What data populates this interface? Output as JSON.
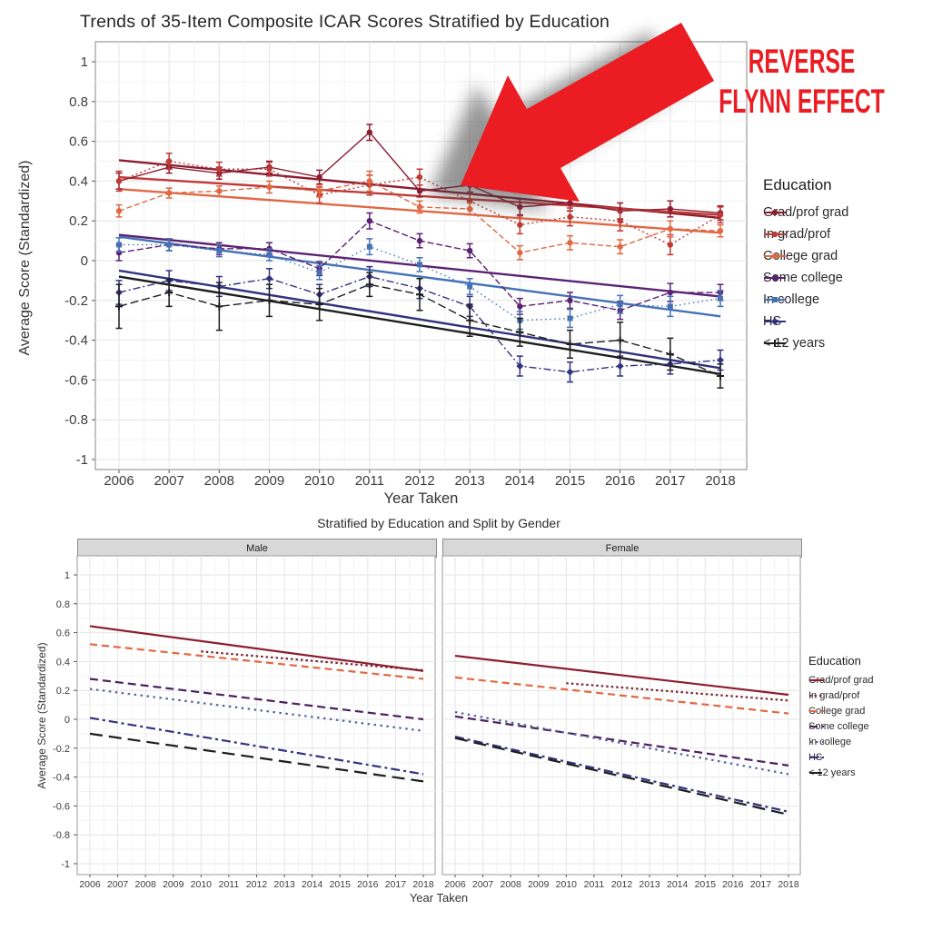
{
  "annotation": {
    "line1": "REVERSE",
    "line2": "FLYNN EFFECT",
    "color": "#EB1C22"
  },
  "chart_data": [
    {
      "type": "line",
      "title": "Trends of 35-Item Composite ICAR Scores Stratified by Education",
      "xlabel": "Year Taken",
      "ylabel": "Average Score (Standardized)",
      "legend_title": "Education",
      "legend_position": "right",
      "grid": true,
      "ylim": [
        -1,
        1
      ],
      "yticks": [
        "1",
        "0.8",
        "0.6",
        "0.4",
        "0.2",
        "0",
        "-0.2",
        "-0.4",
        "-0.6",
        "-0.8",
        "-1"
      ],
      "x": [
        2006,
        2007,
        2008,
        2009,
        2010,
        2011,
        2012,
        2013,
        2014,
        2015,
        2016,
        2017,
        2018
      ],
      "series": [
        {
          "name": "Grad/prof grad",
          "color": "#8C1D31",
          "marker": "circle",
          "dash": "",
          "values": [
            0.4,
            0.47,
            0.44,
            0.47,
            0.42,
            0.645,
            0.35,
            0.38,
            0.27,
            0.29,
            0.25,
            0.26,
            0.24
          ],
          "errors": [
            0.04,
            0.03,
            0.03,
            0.03,
            0.035,
            0.04,
            0.03,
            0.035,
            0.04,
            0.04,
            0.04,
            0.04,
            0.035
          ],
          "trend": [
            0.505,
            0.215
          ]
        },
        {
          "name": "In grad/prof",
          "color": "#BE3A36",
          "marker": "circle",
          "dash": "2,3",
          "values": [
            0.4,
            0.5,
            0.46,
            0.46,
            0.33,
            0.38,
            0.42,
            0.3,
            0.18,
            0.22,
            0.2,
            0.08,
            0.23
          ],
          "errors": [
            0.05,
            0.04,
            0.035,
            0.035,
            0.04,
            0.05,
            0.04,
            0.04,
            0.045,
            0.045,
            0.05,
            0.05,
            0.04
          ],
          "trend": [
            0.42,
            0.23
          ]
        },
        {
          "name": "College grad",
          "color": "#E06843",
          "marker": "circle",
          "dash": "6,3",
          "values": [
            0.25,
            0.34,
            0.35,
            0.37,
            0.35,
            0.4,
            0.27,
            0.26,
            0.04,
            0.09,
            0.07,
            0.16,
            0.15
          ],
          "errors": [
            0.03,
            0.025,
            0.025,
            0.03,
            0.03,
            0.05,
            0.03,
            0.03,
            0.035,
            0.035,
            0.035,
            0.04,
            0.03
          ],
          "trend": [
            0.36,
            0.14
          ]
        },
        {
          "name": "Some college",
          "color": "#5B2273",
          "marker": "circle",
          "dash": "7,3",
          "values": [
            0.04,
            0.08,
            0.06,
            0.06,
            -0.04,
            0.2,
            0.1,
            0.05,
            -0.23,
            -0.2,
            -0.25,
            -0.16,
            -0.16
          ],
          "errors": [
            0.04,
            0.03,
            0.03,
            0.03,
            0.035,
            0.04,
            0.035,
            0.035,
            0.04,
            0.04,
            0.045,
            0.045,
            0.04
          ],
          "trend": [
            0.13,
            -0.18
          ]
        },
        {
          "name": "In college",
          "color": "#4472B5",
          "marker": "square",
          "dash": "1.5,3.5",
          "values": [
            0.08,
            0.08,
            0.05,
            0.03,
            -0.06,
            0.07,
            -0.02,
            -0.13,
            -0.3,
            -0.29,
            -0.22,
            -0.23,
            -0.19
          ],
          "errors": [
            0.035,
            0.03,
            0.03,
            0.03,
            0.035,
            0.04,
            0.035,
            0.04,
            0.045,
            0.045,
            0.045,
            0.05,
            0.04
          ],
          "trend": [
            0.12,
            -0.28
          ]
        },
        {
          "name": "HS",
          "color": "#33327F",
          "marker": "diamond",
          "dash": "8,3,2,3",
          "values": [
            -0.16,
            -0.1,
            -0.13,
            -0.09,
            -0.17,
            -0.08,
            -0.14,
            -0.23,
            -0.53,
            -0.56,
            -0.53,
            -0.52,
            -0.5
          ],
          "errors": [
            0.06,
            0.05,
            0.05,
            0.05,
            0.05,
            0.05,
            0.05,
            0.05,
            0.05,
            0.05,
            0.05,
            0.05,
            0.05
          ],
          "trend": [
            -0.05,
            -0.54
          ]
        },
        {
          "name": "< 12 years",
          "color": "#1D1D1D",
          "marker": "plus",
          "dash": "9,4",
          "values": [
            -0.23,
            -0.16,
            -0.23,
            -0.2,
            -0.22,
            -0.12,
            -0.17,
            -0.3,
            -0.36,
            -0.42,
            -0.4,
            -0.47,
            -0.58
          ],
          "errors": [
            0.11,
            0.07,
            0.12,
            0.08,
            0.08,
            0.06,
            0.08,
            0.08,
            0.07,
            0.07,
            0.09,
            0.08,
            0.06
          ],
          "trend": [
            -0.08,
            -0.57
          ]
        }
      ]
    },
    {
      "type": "line",
      "title": "Stratified by Education and Split by Gender",
      "xlabel": "Year Taken",
      "ylabel": "Average Score (Standardized)",
      "legend_title": "Education",
      "facets": [
        "Male",
        "Female"
      ],
      "grid": true,
      "ylim": [
        -1,
        1
      ],
      "yticks": [
        "1",
        "0.8",
        "0.6",
        "0.4",
        "0.2",
        "0",
        "-0.2",
        "-0.4",
        "-0.6",
        "-0.8",
        "-1"
      ],
      "x_range": [
        2006,
        2018
      ],
      "xticks": [
        2006,
        2007,
        2008,
        2009,
        2010,
        2011,
        2012,
        2013,
        2014,
        2015,
        2016,
        2017,
        2018
      ],
      "series": [
        {
          "name": "Grad/prof grad",
          "color": "#8C1D31",
          "dash": "",
          "male": {
            "x": [
              2006,
              2018
            ],
            "y": [
              0.645,
              0.335
            ]
          },
          "female": {
            "x": [
              2006,
              2018
            ],
            "y": [
              0.44,
              0.17
            ]
          }
        },
        {
          "name": "In grad/prof",
          "color": "#7A2430",
          "dash": "2.5,3",
          "male": {
            "x": [
              2010,
              2018
            ],
            "y": [
              0.47,
              0.34
            ]
          },
          "female": {
            "x": [
              2010,
              2018
            ],
            "y": [
              0.25,
              0.13
            ]
          }
        },
        {
          "name": "College grad",
          "color": "#E06843",
          "dash": "8,5",
          "male": {
            "x": [
              2006,
              2018
            ],
            "y": [
              0.52,
              0.28
            ]
          },
          "female": {
            "x": [
              2006,
              2018
            ],
            "y": [
              0.29,
              0.04
            ]
          }
        },
        {
          "name": "Some college",
          "color": "#4A2060",
          "dash": "9,5",
          "male": {
            "x": [
              2006,
              2018
            ],
            "y": [
              0.28,
              0.0
            ]
          },
          "female": {
            "x": [
              2006,
              2018
            ],
            "y": [
              0.02,
              -0.32
            ]
          }
        },
        {
          "name": "In college",
          "color": "#55639B",
          "dash": "2.5,4.5",
          "male": {
            "x": [
              2006,
              2018
            ],
            "y": [
              0.21,
              -0.08
            ]
          },
          "female": {
            "x": [
              2006,
              2018
            ],
            "y": [
              0.05,
              -0.38
            ]
          }
        },
        {
          "name": "HS",
          "color": "#33327F",
          "dash": "10,4,3,4",
          "male": {
            "x": [
              2006,
              2018
            ],
            "y": [
              0.01,
              -0.38
            ]
          },
          "female": {
            "x": [
              2006,
              2018
            ],
            "y": [
              -0.12,
              -0.64
            ]
          }
        },
        {
          "name": "< 12 years",
          "color": "#1D1D1D",
          "dash": "14,7",
          "male": {
            "x": [
              2006,
              2018
            ],
            "y": [
              -0.1,
              -0.43
            ]
          },
          "female": {
            "x": [
              2006,
              2018
            ],
            "y": [
              -0.13,
              -0.66
            ]
          }
        }
      ]
    }
  ]
}
